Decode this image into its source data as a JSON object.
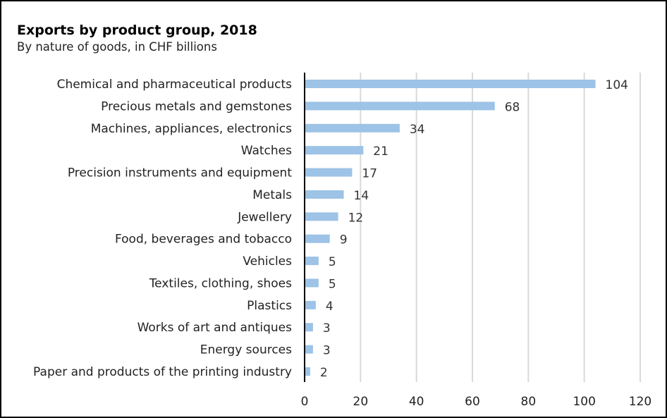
{
  "chart_data": {
    "type": "bar",
    "orientation": "horizontal",
    "title": "Exports by product group, 2018",
    "subtitle": "By nature of goods, in CHF billions",
    "categories": [
      "Chemical and pharmaceutical products",
      "Precious metals and gemstones",
      "Machines, appliances, electronics",
      "Watches",
      "Precision instruments and equipment",
      "Metals",
      "Jewellery",
      "Food, beverages and tobacco",
      "Vehicles",
      "Textiles, clothing, shoes",
      "Plastics",
      "Works of art and antiques",
      "Energy sources",
      "Paper and products of the printing industry"
    ],
    "values": [
      104,
      68,
      34,
      21,
      17,
      14,
      12,
      9,
      5,
      5,
      4,
      3,
      3,
      2
    ],
    "xlim": [
      0,
      120
    ],
    "xticks": [
      0,
      20,
      40,
      60,
      80,
      100,
      120
    ],
    "grid": true,
    "bar_color": "#9dc3e6"
  }
}
